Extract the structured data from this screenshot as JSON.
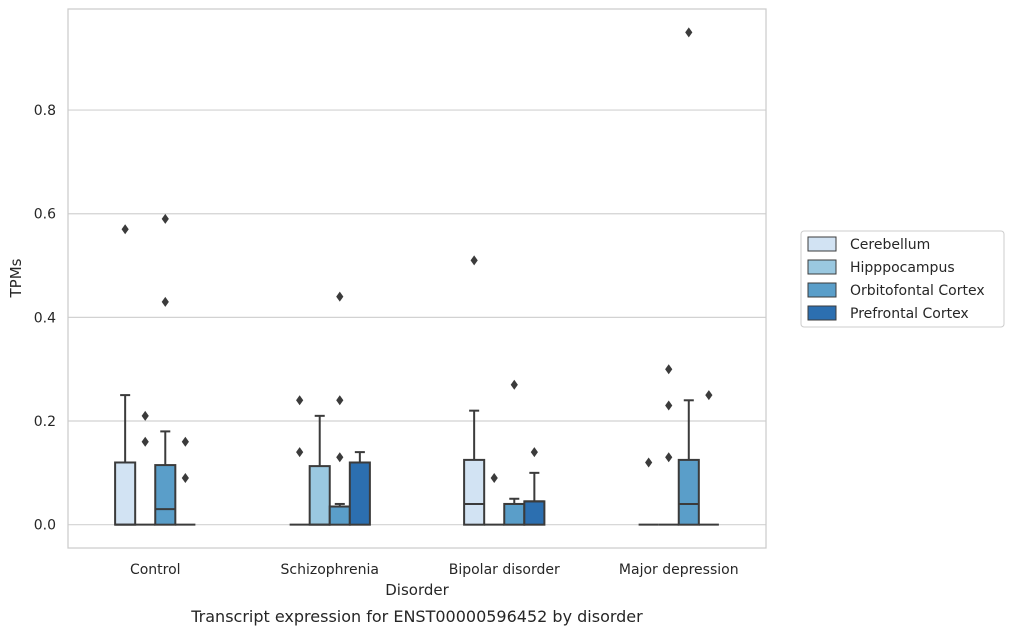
{
  "chart_data": {
    "type": "box",
    "caption": "Transcript expression for ENST00000596452 by disorder",
    "xlabel": "Disorder",
    "ylabel": "TPMs",
    "ylim": [
      -0.045,
      0.995
    ],
    "yticks": [
      0.0,
      0.2,
      0.4,
      0.6,
      0.8
    ],
    "ytick_labels": [
      "0.0",
      "0.2",
      "0.4",
      "0.6",
      "0.8"
    ],
    "grid": "horizontal",
    "legend_position": "right",
    "categories": [
      "Control",
      "Schizophrenia",
      "Bipolar disorder",
      "Major depression"
    ],
    "series": [
      {
        "name": "Cerebellum",
        "color": "#d2e3f3",
        "boxes": [
          {
            "q1": 0,
            "median": 0,
            "q3": 0.12,
            "whisker_low": 0,
            "whisker_high": 0.25,
            "outliers": [
              0.57
            ]
          },
          {
            "q1": 0,
            "median": 0,
            "q3": 0,
            "whisker_low": 0,
            "whisker_high": 0,
            "outliers": [
              0.24,
              0.14
            ]
          },
          {
            "q1": 0,
            "median": 0.04,
            "q3": 0.125,
            "whisker_low": 0,
            "whisker_high": 0.22,
            "outliers": [
              0.51
            ]
          },
          {
            "q1": 0,
            "median": 0,
            "q3": 0,
            "whisker_low": 0,
            "whisker_high": 0,
            "outliers": [
              0.12
            ]
          }
        ]
      },
      {
        "name": "Hipppocampus",
        "color": "#9ac8e0",
        "boxes": [
          {
            "q1": 0,
            "median": 0,
            "q3": 0,
            "whisker_low": 0,
            "whisker_high": 0,
            "outliers": [
              0.21,
              0.16
            ]
          },
          {
            "q1": 0,
            "median": 0,
            "q3": 0.113,
            "whisker_low": 0,
            "whisker_high": 0.21,
            "outliers": []
          },
          {
            "q1": 0,
            "median": 0,
            "q3": 0,
            "whisker_low": 0,
            "whisker_high": 0,
            "outliers": [
              0.09
            ]
          },
          {
            "q1": 0,
            "median": 0,
            "q3": 0,
            "whisker_low": 0,
            "whisker_high": 0,
            "outliers": [
              0.3,
              0.23,
              0.13
            ]
          }
        ]
      },
      {
        "name": "Orbitofontal Cortex",
        "color": "#5a9ec9",
        "boxes": [
          {
            "q1": 0,
            "median": 0.03,
            "q3": 0.115,
            "whisker_low": 0,
            "whisker_high": 0.18,
            "outliers": [
              0.59,
              0.43
            ]
          },
          {
            "q1": 0,
            "median": 0.035,
            "q3": 0.035,
            "whisker_low": 0,
            "whisker_high": 0.04,
            "outliers": [
              0.44,
              0.24,
              0.13
            ]
          },
          {
            "q1": 0,
            "median": 0.04,
            "q3": 0.04,
            "whisker_low": 0,
            "whisker_high": 0.05,
            "outliers": [
              0.27
            ]
          },
          {
            "q1": 0,
            "median": 0.04,
            "q3": 0.125,
            "whisker_low": 0,
            "whisker_high": 0.24,
            "outliers": [
              0.95
            ]
          }
        ]
      },
      {
        "name": "Prefrontal Cortex",
        "color": "#2c6fb0",
        "boxes": [
          {
            "q1": 0,
            "median": 0,
            "q3": 0,
            "whisker_low": 0,
            "whisker_high": 0,
            "outliers": [
              0.16,
              0.09
            ]
          },
          {
            "q1": 0,
            "median": 0.12,
            "q3": 0.12,
            "whisker_low": 0,
            "whisker_high": 0.14,
            "outliers": []
          },
          {
            "q1": 0,
            "median": 0.045,
            "q3": 0.045,
            "whisker_low": 0,
            "whisker_high": 0.1,
            "outliers": [
              0.14
            ]
          },
          {
            "q1": 0,
            "median": 0,
            "q3": 0,
            "whisker_low": 0,
            "whisker_high": 0,
            "outliers": [
              0.25
            ]
          }
        ]
      }
    ]
  }
}
